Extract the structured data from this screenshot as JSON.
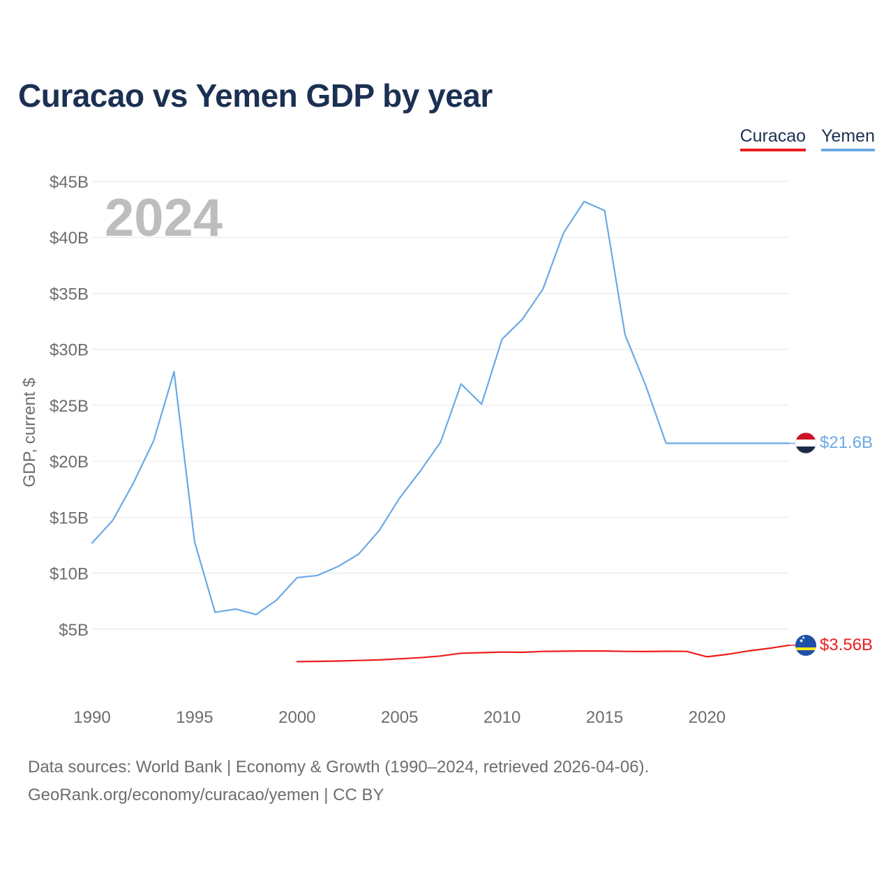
{
  "title": "Curacao vs Yemen GDP by year",
  "legend": [
    {
      "label": "Curacao",
      "color": "#ee1c1c"
    },
    {
      "label": "Yemen",
      "color": "#6aa9e5"
    }
  ],
  "footer": {
    "line1": "Data sources: World Bank | Economy & Growth (1990–2024, retrieved 2026-04-06).",
    "line2": "GeoRank.org/economy/curacao/yemen | CC BY"
  },
  "chart_data": {
    "type": "line",
    "title": "Curacao vs Yemen GDP by year",
    "year_label": "2024",
    "ylabel": "GDP, current $",
    "xlabel": "",
    "xlim": [
      1990,
      2024
    ],
    "ylim": [
      0,
      45
    ],
    "units": "billions USD",
    "x_ticks": [
      "1990",
      "1995",
      "2000",
      "2005",
      "2010",
      "2015",
      "2020"
    ],
    "y_ticks": [
      "$5B",
      "$10B",
      "$15B",
      "$20B",
      "$25B",
      "$30B",
      "$35B",
      "$40B",
      "$45B"
    ],
    "series": [
      {
        "name": "Yemen",
        "color": "#6aa9e5",
        "end_label": "$21.6B",
        "flag_icon": "yemen-flag-icon",
        "x": [
          1990,
          1991,
          1992,
          1993,
          1994,
          1995,
          1996,
          1997,
          1998,
          1999,
          2000,
          2001,
          2002,
          2003,
          2004,
          2005,
          2006,
          2007,
          2008,
          2009,
          2010,
          2011,
          2012,
          2013,
          2014,
          2015,
          2016,
          2017,
          2018,
          2019,
          2020,
          2021,
          2022,
          2023,
          2024
        ],
        "values": [
          12.7,
          14.7,
          18.0,
          21.8,
          28.0,
          12.8,
          6.5,
          6.8,
          6.3,
          7.6,
          9.6,
          9.8,
          10.6,
          11.7,
          13.8,
          16.7,
          19.1,
          21.7,
          26.9,
          25.1,
          30.9,
          32.7,
          35.4,
          40.4,
          43.2,
          42.4,
          31.3,
          26.8,
          21.6,
          21.6,
          21.6,
          21.6,
          21.6,
          21.6,
          21.6
        ]
      },
      {
        "name": "Curacao",
        "color": "#ee1c1c",
        "end_label": "$3.56B",
        "flag_icon": "curacao-flag-icon",
        "x": [
          2000,
          2001,
          2002,
          2003,
          2004,
          2005,
          2006,
          2007,
          2008,
          2009,
          2010,
          2011,
          2012,
          2013,
          2014,
          2015,
          2016,
          2017,
          2018,
          2019,
          2020,
          2021,
          2022,
          2023,
          2024
        ],
        "values": [
          2.1,
          2.12,
          2.15,
          2.2,
          2.25,
          2.35,
          2.45,
          2.6,
          2.85,
          2.9,
          2.95,
          2.93,
          3.01,
          3.03,
          3.05,
          3.05,
          3.01,
          3.0,
          3.02,
          3.01,
          2.53,
          2.75,
          3.05,
          3.28,
          3.56
        ]
      }
    ]
  }
}
